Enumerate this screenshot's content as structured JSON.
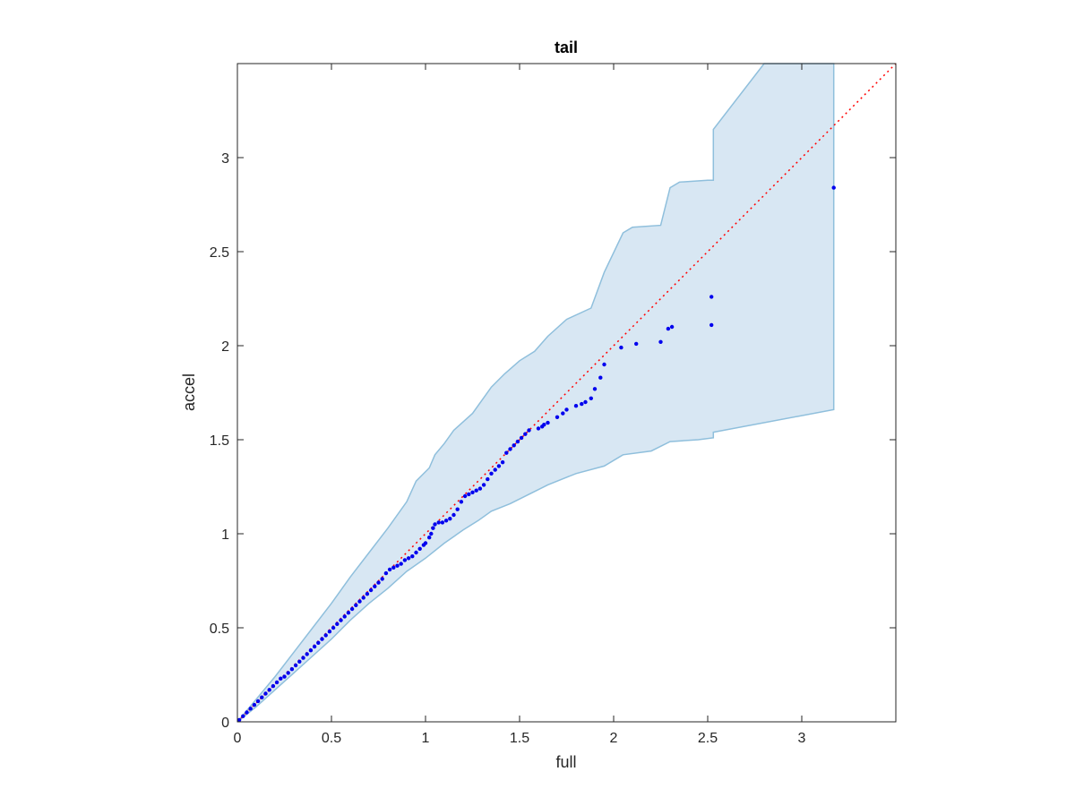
{
  "chart_data": {
    "type": "scatter",
    "title": "tail",
    "xlabel": "full",
    "ylabel": "accel",
    "xlim": [
      0,
      3.5
    ],
    "ylim": [
      0,
      3.5
    ],
    "grid": false,
    "box": true,
    "x_ticks": [
      0,
      0.5,
      1,
      1.5,
      2,
      2.5,
      3
    ],
    "y_ticks": [
      0,
      0.5,
      1,
      1.5,
      2,
      2.5,
      3
    ],
    "x_tick_labels": [
      "0",
      "0.5",
      "1",
      "1.5",
      "2",
      "2.5",
      "3"
    ],
    "y_tick_labels": [
      "0",
      "0.5",
      "1",
      "1.5",
      "2",
      "2.5",
      "3"
    ],
    "colors": {
      "points": "#0000ee",
      "reference_line": "#ff0000",
      "band_fill": "#d8e7f3",
      "band_edge": "#8fbfdc",
      "axes": "#262626"
    },
    "reference_line": {
      "x": [
        0,
        3.5
      ],
      "y": [
        0,
        3.5
      ],
      "style": "dotted"
    },
    "band": {
      "upper": [
        [
          0,
          0
        ],
        [
          0.1,
          0.12
        ],
        [
          0.2,
          0.24
        ],
        [
          0.3,
          0.37
        ],
        [
          0.4,
          0.5
        ],
        [
          0.5,
          0.63
        ],
        [
          0.6,
          0.77
        ],
        [
          0.7,
          0.9
        ],
        [
          0.8,
          1.03
        ],
        [
          0.9,
          1.17
        ],
        [
          0.95,
          1.28
        ],
        [
          1.02,
          1.35
        ],
        [
          1.05,
          1.42
        ],
        [
          1.1,
          1.48
        ],
        [
          1.15,
          1.55
        ],
        [
          1.25,
          1.64
        ],
        [
          1.35,
          1.78
        ],
        [
          1.42,
          1.85
        ],
        [
          1.5,
          1.92
        ],
        [
          1.58,
          1.97
        ],
        [
          1.65,
          2.05
        ],
        [
          1.75,
          2.14
        ],
        [
          1.88,
          2.2
        ],
        [
          1.95,
          2.39
        ],
        [
          2.05,
          2.6
        ],
        [
          2.1,
          2.63
        ],
        [
          2.25,
          2.64
        ],
        [
          2.3,
          2.84
        ],
        [
          2.35,
          2.87
        ],
        [
          2.5,
          2.88
        ],
        [
          2.53,
          2.88
        ],
        [
          2.53,
          3.15
        ],
        [
          2.8,
          3.5
        ],
        [
          3.17,
          3.5
        ]
      ],
      "lower": [
        [
          0,
          0
        ],
        [
          0.1,
          0.08
        ],
        [
          0.2,
          0.17
        ],
        [
          0.3,
          0.26
        ],
        [
          0.4,
          0.35
        ],
        [
          0.5,
          0.44
        ],
        [
          0.6,
          0.54
        ],
        [
          0.7,
          0.63
        ],
        [
          0.8,
          0.71
        ],
        [
          0.9,
          0.8
        ],
        [
          1.0,
          0.87
        ],
        [
          1.1,
          0.95
        ],
        [
          1.2,
          1.02
        ],
        [
          1.28,
          1.07
        ],
        [
          1.35,
          1.12
        ],
        [
          1.45,
          1.16
        ],
        [
          1.55,
          1.21
        ],
        [
          1.65,
          1.26
        ],
        [
          1.8,
          1.32
        ],
        [
          1.95,
          1.36
        ],
        [
          2.05,
          1.42
        ],
        [
          2.2,
          1.44
        ],
        [
          2.3,
          1.49
        ],
        [
          2.45,
          1.5
        ],
        [
          2.53,
          1.51
        ],
        [
          2.53,
          1.54
        ],
        [
          3.17,
          1.66
        ]
      ]
    },
    "points": [
      [
        0.01,
        0.01
      ],
      [
        0.03,
        0.03
      ],
      [
        0.05,
        0.05
      ],
      [
        0.07,
        0.07
      ],
      [
        0.09,
        0.09
      ],
      [
        0.11,
        0.11
      ],
      [
        0.13,
        0.13
      ],
      [
        0.15,
        0.15
      ],
      [
        0.17,
        0.17
      ],
      [
        0.19,
        0.19
      ],
      [
        0.21,
        0.21
      ],
      [
        0.23,
        0.23
      ],
      [
        0.25,
        0.24
      ],
      [
        0.27,
        0.26
      ],
      [
        0.29,
        0.28
      ],
      [
        0.31,
        0.3
      ],
      [
        0.33,
        0.32
      ],
      [
        0.35,
        0.34
      ],
      [
        0.37,
        0.36
      ],
      [
        0.39,
        0.38
      ],
      [
        0.41,
        0.4
      ],
      [
        0.43,
        0.42
      ],
      [
        0.45,
        0.44
      ],
      [
        0.47,
        0.46
      ],
      [
        0.49,
        0.48
      ],
      [
        0.51,
        0.5
      ],
      [
        0.53,
        0.52
      ],
      [
        0.55,
        0.54
      ],
      [
        0.57,
        0.56
      ],
      [
        0.59,
        0.58
      ],
      [
        0.61,
        0.6
      ],
      [
        0.63,
        0.62
      ],
      [
        0.65,
        0.64
      ],
      [
        0.67,
        0.66
      ],
      [
        0.69,
        0.68
      ],
      [
        0.71,
        0.7
      ],
      [
        0.73,
        0.72
      ],
      [
        0.75,
        0.74
      ],
      [
        0.77,
        0.76
      ],
      [
        0.79,
        0.79
      ],
      [
        0.81,
        0.81
      ],
      [
        0.83,
        0.82
      ],
      [
        0.85,
        0.83
      ],
      [
        0.87,
        0.84
      ],
      [
        0.89,
        0.86
      ],
      [
        0.91,
        0.87
      ],
      [
        0.93,
        0.88
      ],
      [
        0.95,
        0.9
      ],
      [
        0.97,
        0.92
      ],
      [
        0.99,
        0.94
      ],
      [
        1.0,
        0.95
      ],
      [
        1.02,
        0.98
      ],
      [
        1.03,
        1.0
      ],
      [
        1.04,
        1.03
      ],
      [
        1.05,
        1.05
      ],
      [
        1.07,
        1.06
      ],
      [
        1.09,
        1.06
      ],
      [
        1.11,
        1.07
      ],
      [
        1.13,
        1.08
      ],
      [
        1.15,
        1.1
      ],
      [
        1.17,
        1.13
      ],
      [
        1.19,
        1.17
      ],
      [
        1.21,
        1.2
      ],
      [
        1.23,
        1.21
      ],
      [
        1.25,
        1.22
      ],
      [
        1.27,
        1.23
      ],
      [
        1.29,
        1.24
      ],
      [
        1.31,
        1.26
      ],
      [
        1.33,
        1.29
      ],
      [
        1.35,
        1.32
      ],
      [
        1.37,
        1.34
      ],
      [
        1.39,
        1.36
      ],
      [
        1.41,
        1.38
      ],
      [
        1.43,
        1.43
      ],
      [
        1.45,
        1.45
      ],
      [
        1.47,
        1.47
      ],
      [
        1.49,
        1.49
      ],
      [
        1.51,
        1.51
      ],
      [
        1.53,
        1.53
      ],
      [
        1.55,
        1.55
      ],
      [
        1.6,
        1.56
      ],
      [
        1.62,
        1.57
      ],
      [
        1.63,
        1.58
      ],
      [
        1.65,
        1.59
      ],
      [
        1.7,
        1.62
      ],
      [
        1.73,
        1.64
      ],
      [
        1.75,
        1.66
      ],
      [
        1.8,
        1.68
      ],
      [
        1.83,
        1.69
      ],
      [
        1.85,
        1.7
      ],
      [
        1.88,
        1.72
      ],
      [
        1.9,
        1.77
      ],
      [
        1.93,
        1.83
      ],
      [
        1.95,
        1.9
      ],
      [
        2.04,
        1.99
      ],
      [
        2.12,
        2.01
      ],
      [
        2.25,
        2.02
      ],
      [
        2.29,
        2.09
      ],
      [
        2.31,
        2.1
      ],
      [
        2.52,
        2.11
      ],
      [
        2.52,
        2.26
      ],
      [
        3.17,
        2.84
      ]
    ]
  }
}
